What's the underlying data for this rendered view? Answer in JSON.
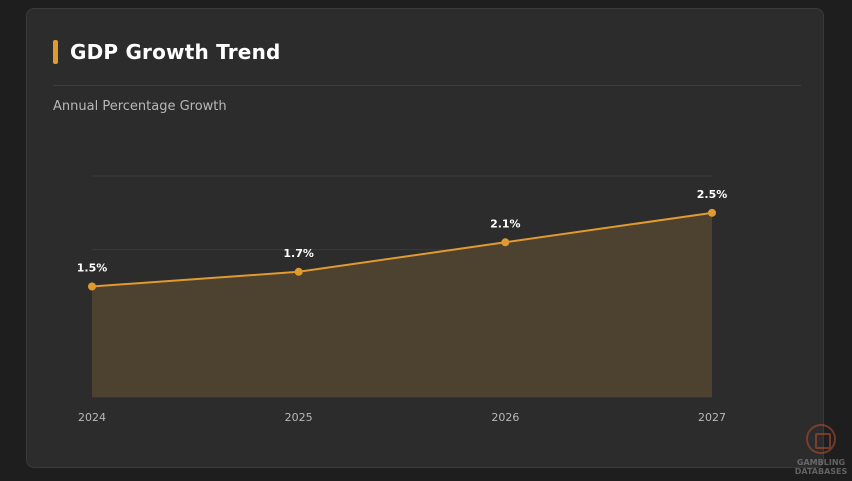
{
  "card": {
    "title": "GDP Growth Trend",
    "subtitle": "Annual Percentage Growth",
    "accent_color": "#e09a2f"
  },
  "chart_data": {
    "type": "area",
    "x": [
      "2024",
      "2025",
      "2026",
      "2027"
    ],
    "series": [
      {
        "values": [
          1.5,
          1.7,
          2.1,
          2.5
        ],
        "data_labels": [
          "1.5%",
          "1.7%",
          "2.1%",
          "2.5%"
        ]
      }
    ],
    "ylim": [
      0,
      3.0
    ],
    "grid": true,
    "line_color": "#e09a2f",
    "fill_color": "#4d4130"
  },
  "watermark": {
    "line1": "GAMBLING",
    "line2": "DATABASES"
  }
}
